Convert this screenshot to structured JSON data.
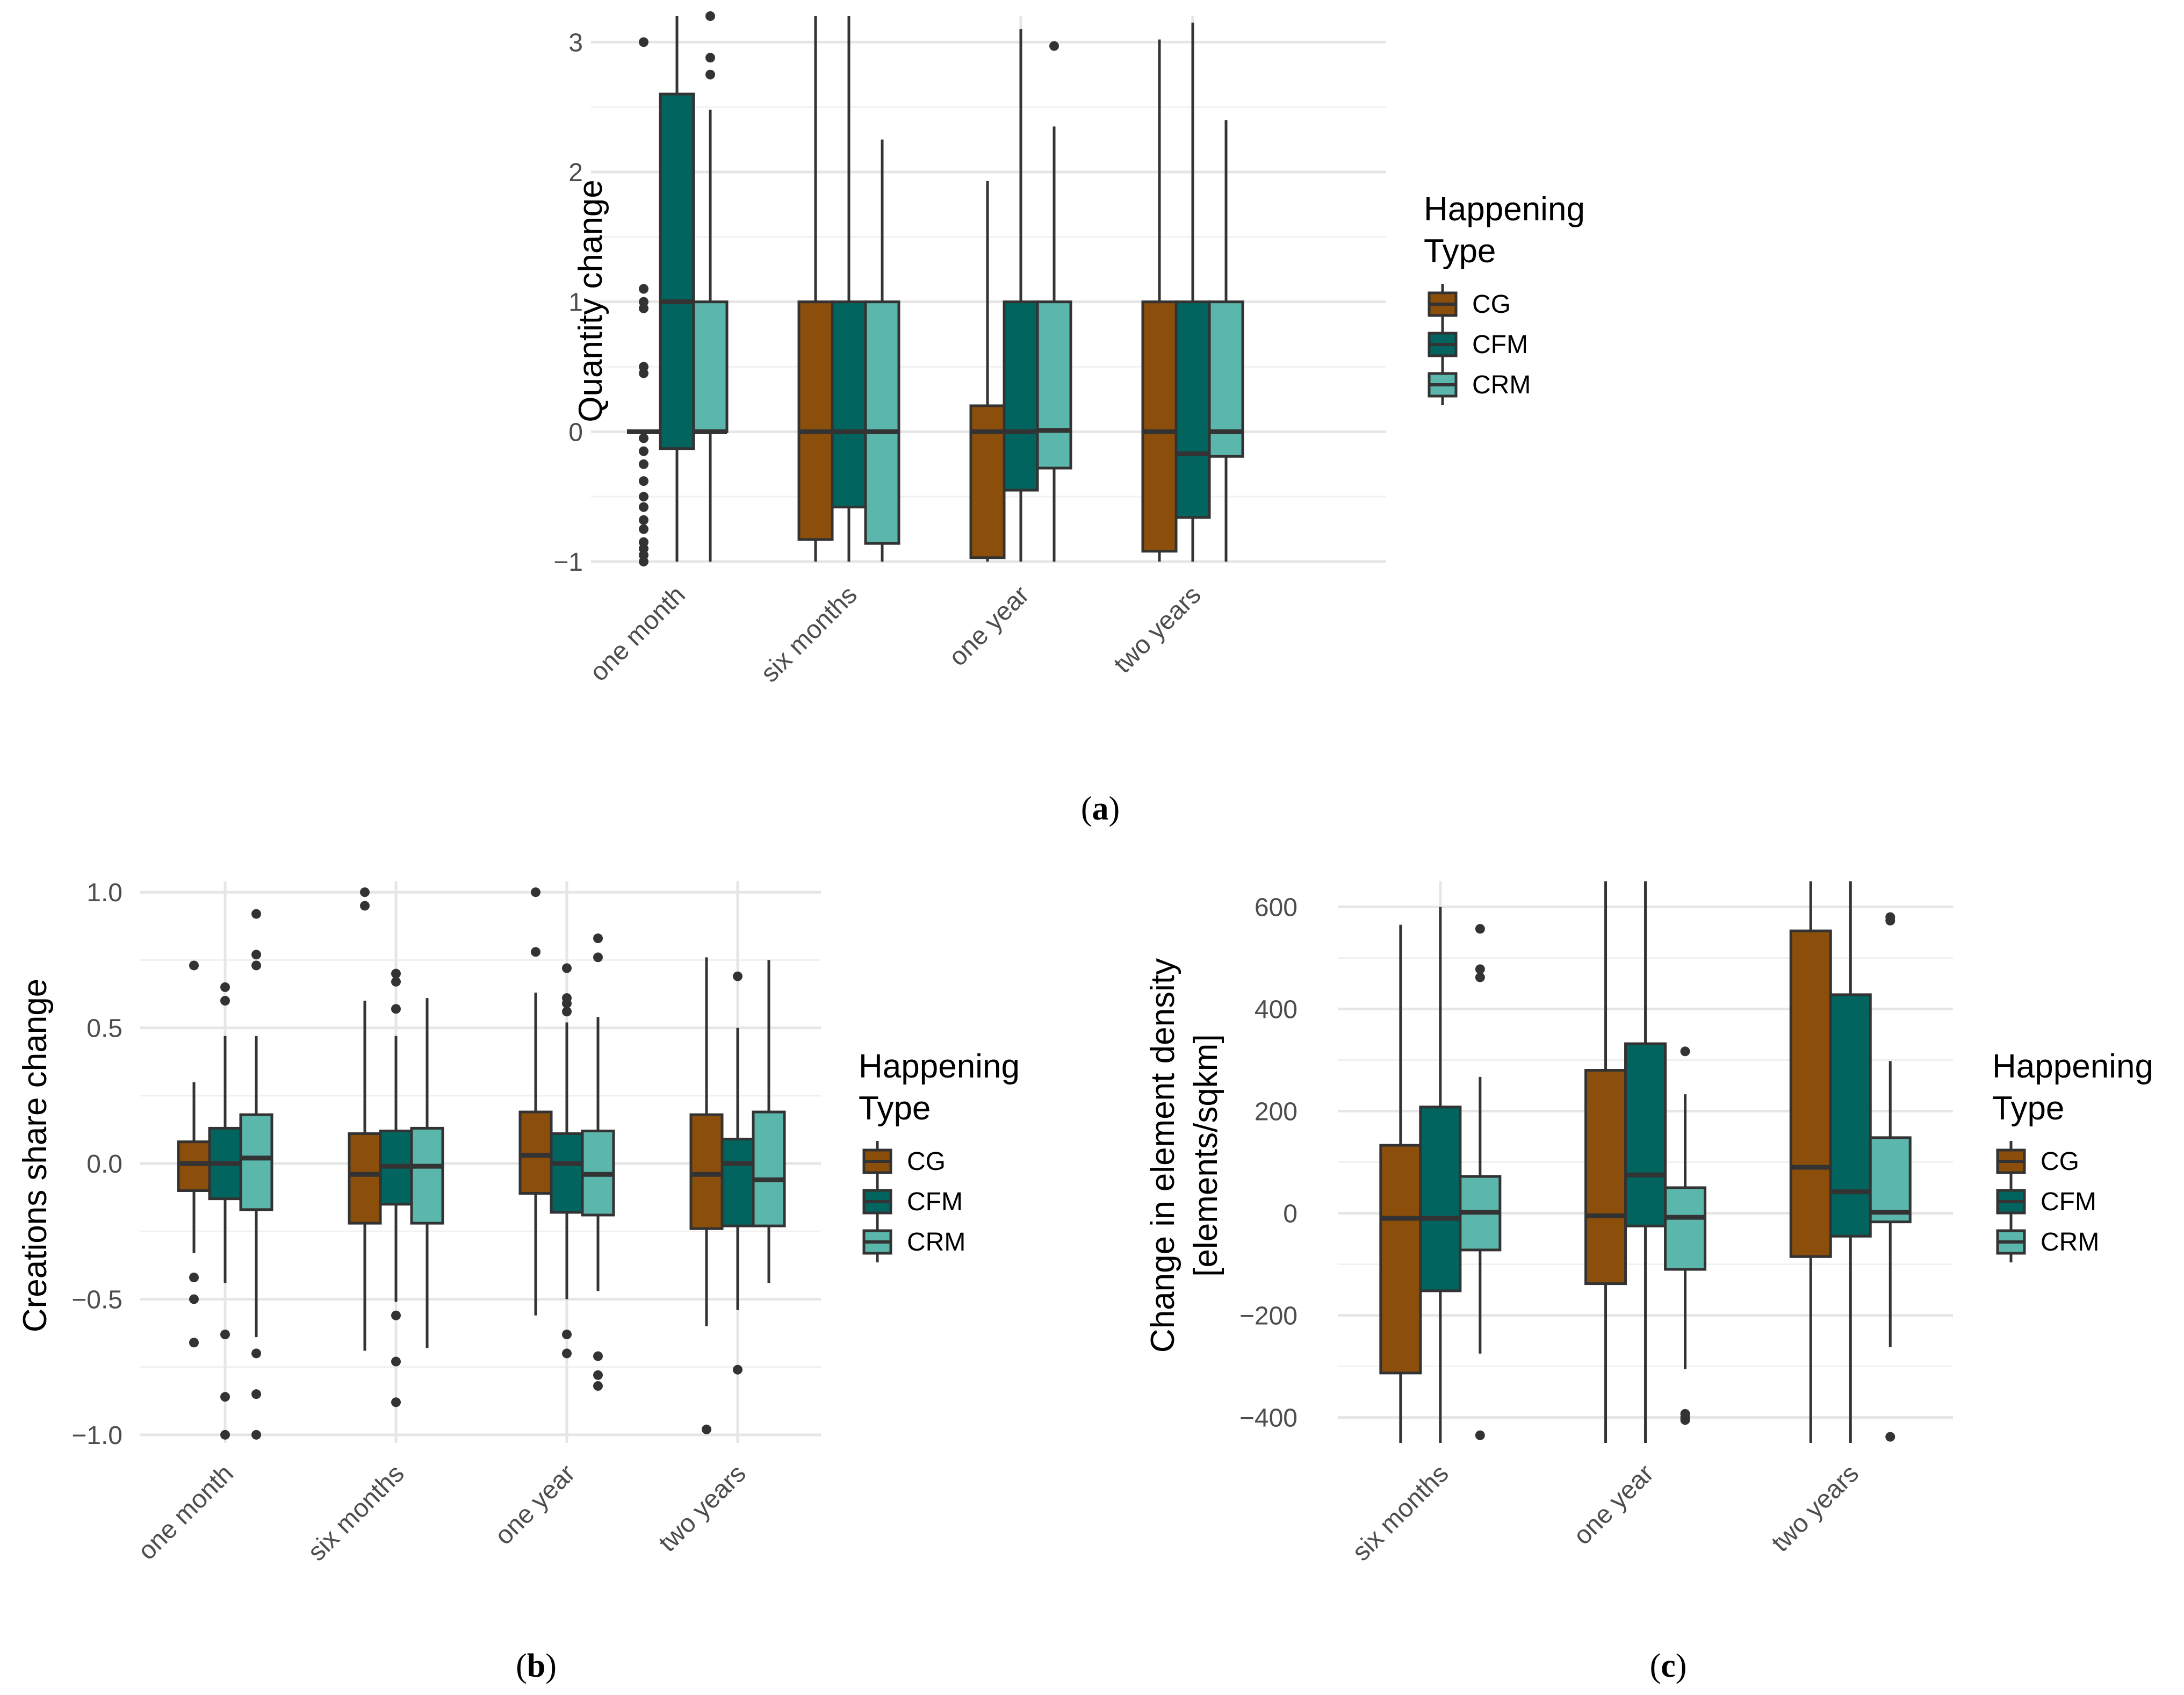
{
  "colors": {
    "CG": "#8B4F0B",
    "CFM": "#02645E",
    "CRM": "#5BB6AC",
    "outline": "#333333"
  },
  "chart_data": [
    {
      "id": "a",
      "type": "box",
      "caption": "(a)",
      "ylabel": "Quantity change",
      "ylim": [
        -1,
        3.2
      ],
      "yticks": [
        -1,
        0,
        1,
        2,
        3
      ],
      "ytick_labels": [
        "−1",
        "0",
        "1",
        "2",
        "3"
      ],
      "categories": [
        "one month",
        "six months",
        "one year",
        "two years"
      ],
      "legend": {
        "title": [
          "Happening",
          "Type"
        ],
        "labels": [
          "CG",
          "CFM",
          "CRM"
        ]
      },
      "series": [
        {
          "name": "CG",
          "boxes": [
            {
              "q1": 0,
              "median": 0,
              "q3": 0,
              "lo": 0,
              "hi": 0,
              "outliers": [
                3.0,
                1.1,
                1.0,
                0.95,
                0.5,
                0.45,
                -0.05,
                -0.15,
                -0.25,
                -0.38,
                -0.5,
                -0.58,
                -0.68,
                -0.75,
                -0.85,
                -0.9,
                -0.95,
                -1.0
              ]
            },
            {
              "q1": -0.83,
              "median": 0,
              "q3": 1,
              "lo": -1,
              "hi": 3.2,
              "outliers": []
            },
            {
              "q1": -0.97,
              "median": 0,
              "q3": 0.2,
              "lo": -1,
              "hi": 1.93,
              "outliers": []
            },
            {
              "q1": -0.92,
              "median": 0,
              "q3": 1,
              "lo": -1,
              "hi": 3.02,
              "outliers": []
            }
          ]
        },
        {
          "name": "CFM",
          "boxes": [
            {
              "q1": -0.13,
              "median": 1,
              "q3": 2.6,
              "lo": -1,
              "hi": 3.2,
              "outliers": []
            },
            {
              "q1": -0.58,
              "median": 0,
              "q3": 1,
              "lo": -1,
              "hi": 3.2,
              "outliers": []
            },
            {
              "q1": -0.45,
              "median": 0,
              "q3": 1,
              "lo": -1,
              "hi": 3.1,
              "outliers": []
            },
            {
              "q1": -0.66,
              "median": -0.17,
              "q3": 1,
              "lo": -1,
              "hi": 3.15,
              "outliers": []
            }
          ]
        },
        {
          "name": "CRM",
          "boxes": [
            {
              "q1": 0,
              "median": 0,
              "q3": 1,
              "lo": -1,
              "hi": 2.48,
              "outliers": [
                2.88,
                2.75,
                3.2
              ]
            },
            {
              "q1": -0.86,
              "median": 0,
              "q3": 1,
              "lo": -1,
              "hi": 2.25,
              "outliers": []
            },
            {
              "q1": -0.28,
              "median": 0.01,
              "q3": 1,
              "lo": -1,
              "hi": 2.35,
              "outliers": [
                2.97
              ]
            },
            {
              "q1": -0.19,
              "median": 0,
              "q3": 1,
              "lo": -1,
              "hi": 2.4,
              "outliers": []
            }
          ]
        }
      ]
    },
    {
      "id": "b",
      "type": "box",
      "caption": "(b)",
      "ylabel": "Creations share change",
      "ylim": [
        -1.03,
        1.04
      ],
      "yticks": [
        -1.0,
        -0.5,
        0.0,
        0.5,
        1.0
      ],
      "ytick_labels": [
        "−1.0",
        "−0.5",
        "0.0",
        "0.5",
        "1.0"
      ],
      "categories": [
        "one month",
        "six months",
        "one year",
        "two years"
      ],
      "legend": {
        "title": [
          "Happening",
          "Type"
        ],
        "labels": [
          "CG",
          "CFM",
          "CRM"
        ]
      },
      "series": [
        {
          "name": "CG",
          "boxes": [
            {
              "q1": -0.1,
              "median": 0,
              "q3": 0.08,
              "lo": -0.33,
              "hi": 0.3,
              "outliers": [
                0.73,
                -0.42,
                -0.5,
                -0.66
              ]
            },
            {
              "q1": -0.22,
              "median": -0.04,
              "q3": 0.11,
              "lo": -0.69,
              "hi": 0.6,
              "outliers": [
                1.0,
                0.95
              ]
            },
            {
              "q1": -0.11,
              "median": 0.03,
              "q3": 0.19,
              "lo": -0.56,
              "hi": 0.63,
              "outliers": [
                1.0,
                0.78
              ]
            },
            {
              "q1": -0.24,
              "median": -0.04,
              "q3": 0.18,
              "lo": -0.6,
              "hi": 0.76,
              "outliers": [
                -0.98
              ]
            }
          ]
        },
        {
          "name": "CFM",
          "boxes": [
            {
              "q1": -0.13,
              "median": 0,
              "q3": 0.13,
              "lo": -0.44,
              "hi": 0.47,
              "outliers": [
                0.65,
                0.6,
                -0.63,
                -0.86,
                -1.0
              ]
            },
            {
              "q1": -0.15,
              "median": -0.01,
              "q3": 0.12,
              "lo": -0.51,
              "hi": 0.47,
              "outliers": [
                0.7,
                0.67,
                0.57,
                -0.56,
                -0.73,
                -0.88
              ]
            },
            {
              "q1": -0.18,
              "median": 0,
              "q3": 0.11,
              "lo": -0.5,
              "hi": 0.52,
              "outliers": [
                0.72,
                0.61,
                0.59,
                0.56,
                -0.63,
                -0.7
              ]
            },
            {
              "q1": -0.23,
              "median": 0,
              "q3": 0.09,
              "lo": -0.54,
              "hi": 0.5,
              "outliers": [
                0.69,
                -0.76
              ]
            }
          ]
        },
        {
          "name": "CRM",
          "boxes": [
            {
              "q1": -0.17,
              "median": 0.02,
              "q3": 0.18,
              "lo": -0.64,
              "hi": 0.47,
              "outliers": [
                0.92,
                0.77,
                0.73,
                -0.7,
                -0.85,
                -1.0
              ]
            },
            {
              "q1": -0.22,
              "median": -0.01,
              "q3": 0.13,
              "lo": -0.68,
              "hi": 0.61,
              "outliers": []
            },
            {
              "q1": -0.19,
              "median": -0.04,
              "q3": 0.12,
              "lo": -0.47,
              "hi": 0.54,
              "outliers": [
                0.83,
                0.76,
                -0.71,
                -0.78,
                -0.82
              ]
            },
            {
              "q1": -0.23,
              "median": -0.06,
              "q3": 0.19,
              "lo": -0.44,
              "hi": 0.75,
              "outliers": []
            }
          ]
        }
      ]
    },
    {
      "id": "c",
      "type": "box",
      "caption": "(c)",
      "ylabel": [
        "Change in element density",
        "[elements/sqkm]"
      ],
      "ylim": [
        -450,
        650
      ],
      "yticks": [
        -400,
        -200,
        0,
        200,
        400,
        600
      ],
      "ytick_labels": [
        "−400",
        "−200",
        "0",
        "200",
        "400",
        "600"
      ],
      "categories": [
        "six months",
        "one year",
        "two years"
      ],
      "legend": {
        "title": [
          "Happening",
          "Type"
        ],
        "labels": [
          "CG",
          "CFM",
          "CRM"
        ]
      },
      "series": [
        {
          "name": "CG",
          "boxes": [
            {
              "q1": -313,
              "median": -10,
              "q3": 133,
              "lo": -450,
              "hi": 565,
              "outliers": []
            },
            {
              "q1": -138,
              "median": -5,
              "q3": 280,
              "lo": -450,
              "hi": 650,
              "outliers": []
            },
            {
              "q1": -85,
              "median": 90,
              "q3": 553,
              "lo": -450,
              "hi": 650,
              "outliers": []
            }
          ]
        },
        {
          "name": "CFM",
          "boxes": [
            {
              "q1": -152,
              "median": -10,
              "q3": 208,
              "lo": -450,
              "hi": 600,
              "outliers": []
            },
            {
              "q1": -25,
              "median": 75,
              "q3": 332,
              "lo": -450,
              "hi": 650,
              "outliers": []
            },
            {
              "q1": -45,
              "median": 42,
              "q3": 428,
              "lo": -450,
              "hi": 650,
              "outliers": []
            }
          ]
        },
        {
          "name": "CRM",
          "boxes": [
            {
              "q1": -72,
              "median": 2,
              "q3": 72,
              "lo": -275,
              "hi": 267,
              "outliers": [
                557,
                478,
                462,
                -435
              ]
            },
            {
              "q1": -110,
              "median": -8,
              "q3": 50,
              "lo": -305,
              "hi": 233,
              "outliers": [
                317,
                -393,
                -400,
                -405
              ]
            },
            {
              "q1": -17,
              "median": 2,
              "q3": 148,
              "lo": -262,
              "hi": 298,
              "outliers": [
                580,
                573,
                -438
              ]
            }
          ]
        }
      ]
    }
  ]
}
